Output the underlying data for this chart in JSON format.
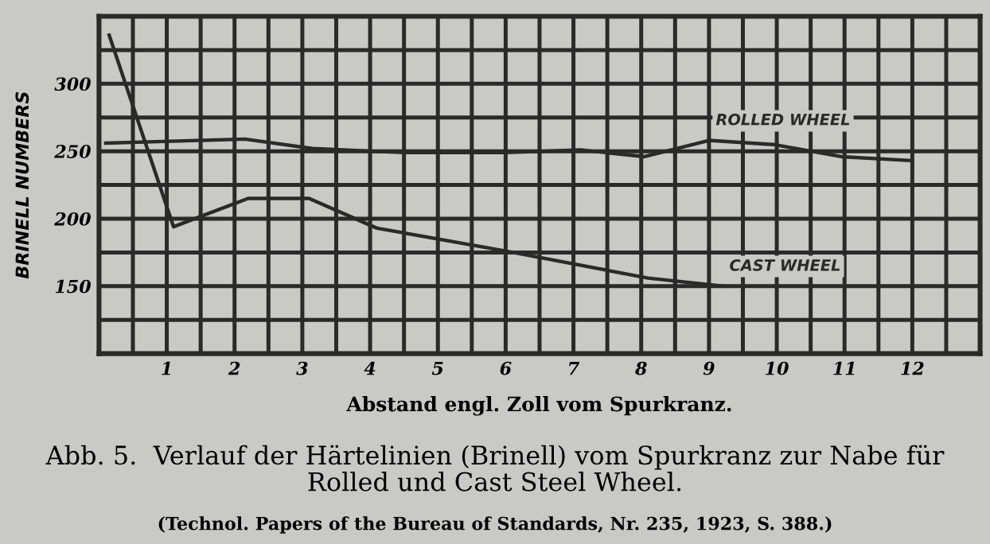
{
  "chart_data": {
    "type": "line",
    "title": "Abb. 5.  Verlauf der Härtelinien (Brinell) vom Spurkranz zur Nabe für Rolled und Cast Steel Wheel.",
    "xlabel": "Abstand engl. Zoll vom Spurkranz.",
    "ylabel": "BRINELL NUMBERS",
    "annotations": [
      "(Technol. Papers of the Bureau of Standards, Nr. 235, 1923, S. 388.)"
    ],
    "series": [
      {
        "name": "ROLLED WHEEL",
        "color": "#2a2a2a",
        "x": [
          0.1,
          2.15,
          3.15,
          4.5,
          6.0,
          7.1,
          8.05,
          9.0,
          9.95,
          10.95,
          12.0
        ],
        "values": [
          256,
          259,
          252,
          249,
          249,
          251,
          246,
          258,
          255,
          246,
          243
        ]
      },
      {
        "name": "CAST WHEEL",
        "color": "#2a2a2a",
        "x": [
          0.15,
          1.1,
          2.2,
          3.1,
          4.1,
          6.0,
          8.1,
          9.2
        ],
        "values": [
          336,
          194,
          215,
          215,
          193,
          176,
          156,
          150
        ]
      }
    ],
    "xlim": [
      0,
      13
    ],
    "ylim": [
      100,
      350
    ],
    "xticks": [
      {
        "value": 0.5,
        "label": null
      },
      1,
      {
        "value": 1.5,
        "label": null
      },
      2,
      {
        "value": 2.5,
        "label": null
      },
      3,
      {
        "value": 3.5,
        "label": null
      },
      4,
      {
        "value": 4.5,
        "label": null
      },
      5,
      {
        "value": 5.5,
        "label": null
      },
      6,
      {
        "value": 6.5,
        "label": null
      },
      7,
      {
        "value": 7.5,
        "label": null
      },
      8,
      {
        "value": 8.5,
        "label": null
      },
      9,
      {
        "value": 9.5,
        "label": null
      },
      10,
      {
        "value": 10.5,
        "label": null
      },
      11,
      {
        "value": 11.5,
        "label": null
      },
      12,
      {
        "value": 12.5,
        "label": null
      }
    ],
    "yticks": [
      {
        "value": 125,
        "label": null
      },
      150,
      {
        "value": 175,
        "label": null
      },
      200,
      {
        "value": 225,
        "label": null
      },
      250,
      {
        "value": 275,
        "label": null
      },
      300,
      {
        "value": 325,
        "label": null
      }
    ],
    "grid": true,
    "marker": "none",
    "line_style": "solid",
    "legend": false
  }
}
